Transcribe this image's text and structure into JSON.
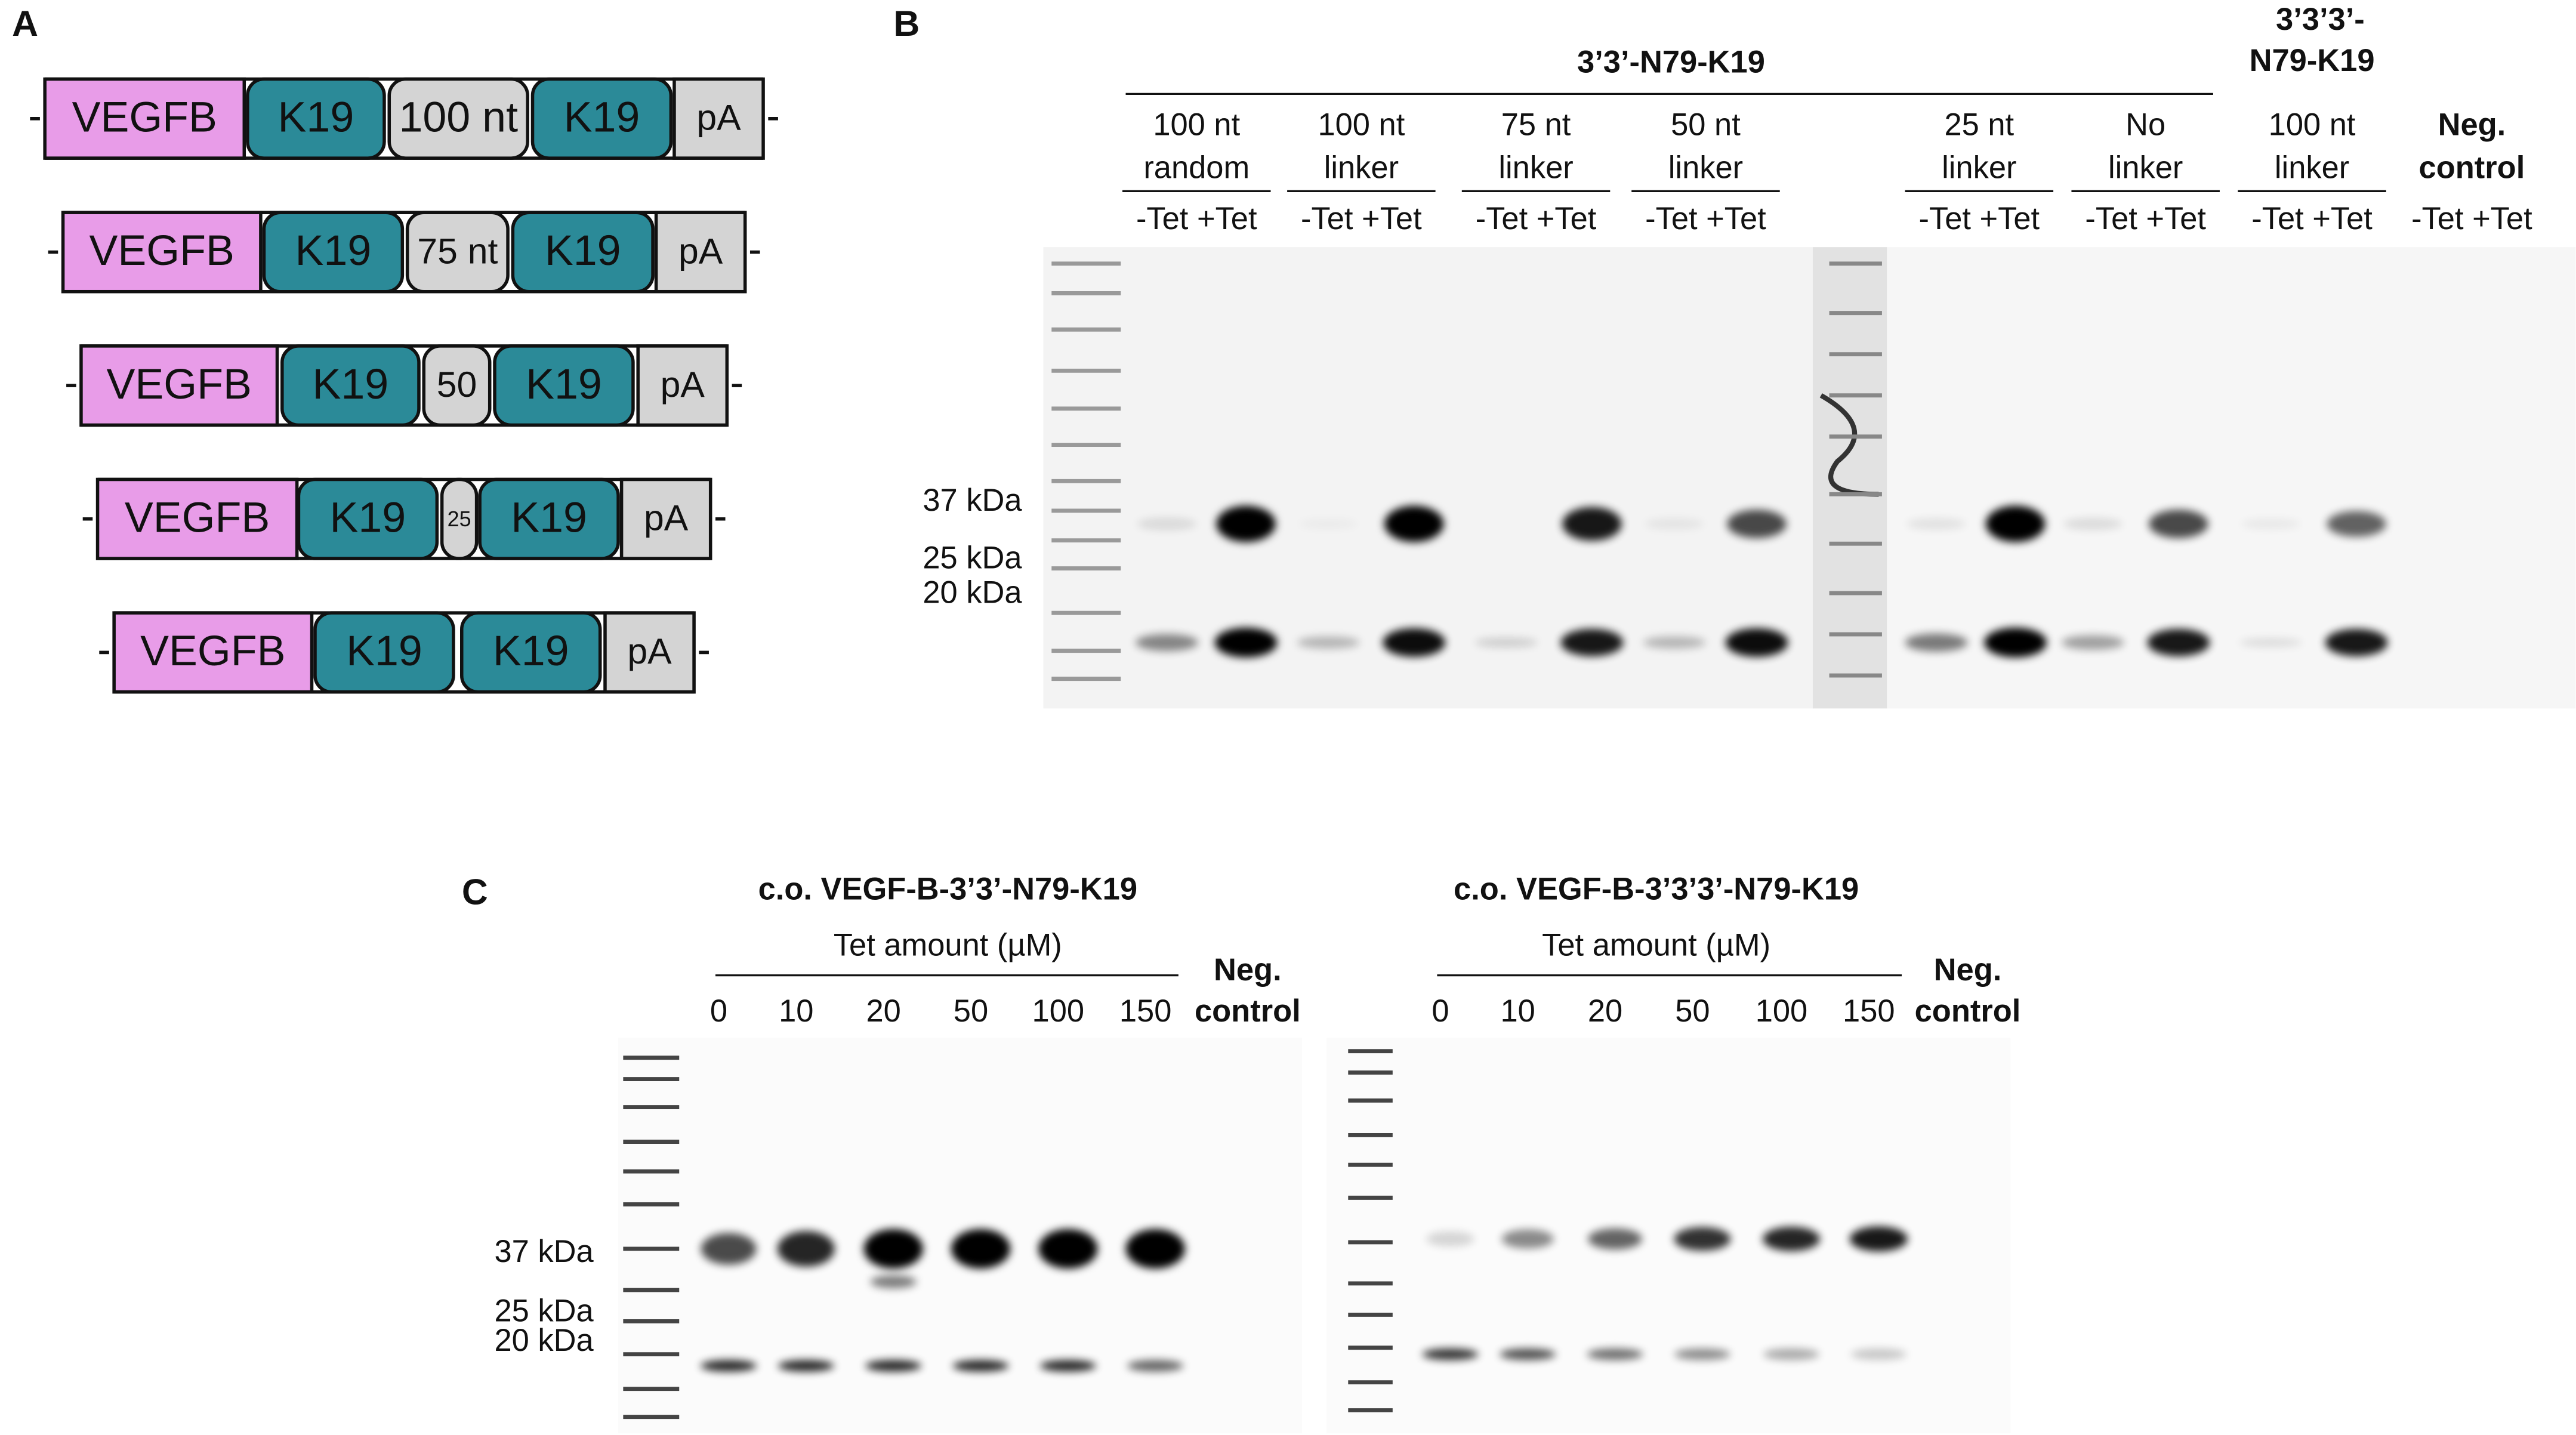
{
  "panels": {
    "a": "A",
    "b": "B",
    "c": "C"
  },
  "constructs": [
    [
      "VEGFB",
      "K19",
      "100 nt",
      "K19",
      "pA"
    ],
    [
      "VEGFB",
      "K19",
      "75 nt",
      "K19",
      "pA"
    ],
    [
      "VEGFB",
      "K19",
      "50",
      "K19",
      "pA"
    ],
    [
      "VEGFB",
      "K19",
      "25",
      "K19",
      "pA"
    ],
    [
      "VEGFB",
      "K19",
      "K19",
      "pA"
    ]
  ],
  "blot_b": {
    "group_1": "3’3’-N79-K19",
    "group_2": [
      "3’3’3’-",
      "N79-K19"
    ],
    "conditions": [
      [
        "100 nt",
        "random"
      ],
      [
        "100 nt",
        "linker"
      ],
      [
        "75 nt",
        "linker"
      ],
      [
        "50 nt",
        "linker"
      ],
      [
        "25 nt",
        "linker"
      ],
      [
        "No",
        "linker"
      ],
      [
        "100 nt",
        "linker"
      ],
      [
        "Neg.",
        "control"
      ]
    ],
    "lane_labels": [
      "-Tet +Tet",
      "-Tet +Tet",
      "-Tet +Tet",
      "-Tet +Tet",
      "-Tet +Tet",
      "-Tet +Tet",
      "-Tet +Tet",
      "-Tet +Tet"
    ],
    "markers": [
      "37 kDa",
      "25 kDa",
      "20 kDa"
    ]
  },
  "blot_c": {
    "blots": [
      {
        "title": "c.o. VEGF-B-3’3’-N79-K19",
        "axis_label": "Tet amount (µM)",
        "amounts": [
          0,
          10,
          20,
          50,
          100,
          150
        ],
        "neg": [
          "Neg.",
          "control"
        ]
      },
      {
        "title": "c.o. VEGF-B-3’3’3’-N79-K19",
        "axis_label": "Tet amount (µM)",
        "amounts": [
          0,
          10,
          20,
          50,
          100,
          150
        ],
        "neg": [
          "Neg.",
          "control"
        ]
      }
    ],
    "markers": [
      "37 kDa",
      "25 kDa",
      "20 kDa"
    ]
  }
}
